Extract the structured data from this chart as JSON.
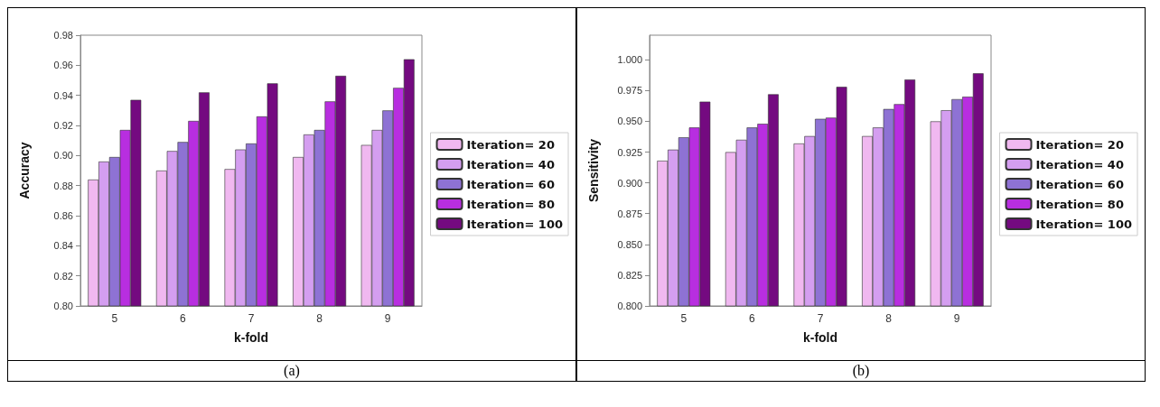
{
  "chart_data": [
    {
      "type": "bar",
      "xlabel": "k-fold",
      "ylabel": "Accuracy",
      "categories": [
        "5",
        "6",
        "7",
        "8",
        "9"
      ],
      "series": [
        {
          "name": "Iteration= 20",
          "color": "#f0b8f0",
          "values": [
            0.884,
            0.89,
            0.891,
            0.899,
            0.907
          ]
        },
        {
          "name": "Iteration= 40",
          "color": "#d49ef0",
          "values": [
            0.896,
            0.903,
            0.904,
            0.914,
            0.917
          ]
        },
        {
          "name": "Iteration= 60",
          "color": "#8e72d4",
          "values": [
            0.899,
            0.909,
            0.908,
            0.917,
            0.93
          ]
        },
        {
          "name": "Iteration= 80",
          "color": "#b82ee0",
          "values": [
            0.917,
            0.923,
            0.926,
            0.936,
            0.945
          ]
        },
        {
          "name": "Iteration= 100",
          "color": "#740a80",
          "values": [
            0.937,
            0.942,
            0.948,
            0.953,
            0.964
          ]
        }
      ],
      "ylim": [
        0.8,
        0.98
      ],
      "yticks": [
        {
          "value": 0.8,
          "label": "0.80"
        },
        {
          "value": 0.82,
          "label": "0.82"
        },
        {
          "value": 0.84,
          "label": "0.84"
        },
        {
          "value": 0.86,
          "label": "0.86"
        },
        {
          "value": 0.88,
          "label": "0.88"
        },
        {
          "value": 0.9,
          "label": "0.90"
        },
        {
          "value": 0.92,
          "label": "0.92"
        },
        {
          "value": 0.94,
          "label": "0.94"
        },
        {
          "value": 0.96,
          "label": "0.96"
        },
        {
          "value": 0.98,
          "label": "0.98"
        }
      ],
      "grid": false,
      "legend": "right",
      "annotations": [
        "(a)"
      ]
    },
    {
      "type": "bar",
      "xlabel": "k-fold",
      "ylabel": "Sensitivity",
      "categories": [
        "5",
        "6",
        "7",
        "8",
        "9"
      ],
      "series": [
        {
          "name": "Iteration= 20",
          "color": "#f0b8f0",
          "values": [
            0.918,
            0.925,
            0.932,
            0.938,
            0.95
          ]
        },
        {
          "name": "Iteration= 40",
          "color": "#d49ef0",
          "values": [
            0.927,
            0.935,
            0.938,
            0.945,
            0.959
          ]
        },
        {
          "name": "Iteration= 60",
          "color": "#8e72d4",
          "values": [
            0.937,
            0.945,
            0.952,
            0.96,
            0.968
          ]
        },
        {
          "name": "Iteration= 80",
          "color": "#b82ee0",
          "values": [
            0.945,
            0.948,
            0.953,
            0.964,
            0.97
          ]
        },
        {
          "name": "Iteration= 100",
          "color": "#740a80",
          "values": [
            0.966,
            0.972,
            0.978,
            0.984,
            0.989
          ]
        }
      ],
      "ylim": [
        0.8,
        1.02
      ],
      "yticks": [
        {
          "value": 0.8,
          "label": "0.800"
        },
        {
          "value": 0.825,
          "label": "0.825"
        },
        {
          "value": 0.85,
          "label": "0.850"
        },
        {
          "value": 0.875,
          "label": "0.875"
        },
        {
          "value": 0.9,
          "label": "0.900"
        },
        {
          "value": 0.925,
          "label": "0.925"
        },
        {
          "value": 0.95,
          "label": "0.950"
        },
        {
          "value": 0.975,
          "label": "0.975"
        },
        {
          "value": 1.0,
          "label": "1.000"
        }
      ],
      "grid": false,
      "legend": "right",
      "annotations": [
        "(b)"
      ]
    }
  ]
}
